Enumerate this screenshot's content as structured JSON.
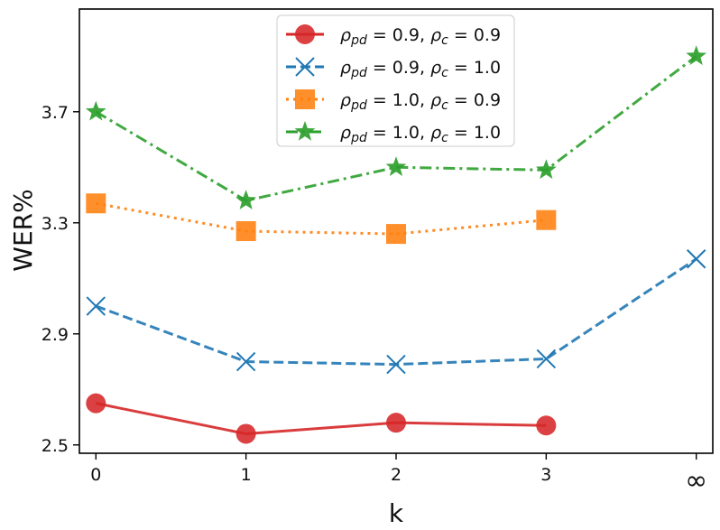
{
  "chart_data": {
    "type": "line",
    "title": "",
    "xlabel": "k",
    "ylabel": "WER%",
    "categories": [
      "0",
      "1",
      "2",
      "3",
      "∞"
    ],
    "x_positions": [
      0,
      1,
      2,
      3,
      4
    ],
    "yticks": [
      "2.5",
      "2.9",
      "3.3",
      "3.7"
    ],
    "ylim": [
      2.47,
      4.07
    ],
    "xlim": [
      -0.11,
      4.11
    ],
    "grid": false,
    "legend_position": "top-center",
    "series": [
      {
        "name": "ρ_pd = 0.9, ρ_c = 0.9",
        "legend_main_a": "ρ",
        "legend_sub_a": "pd",
        "legend_val_a": "= 0.9, ",
        "legend_main_b": "ρ",
        "legend_sub_b": "c",
        "legend_val_b": "= 0.9",
        "values": [
          2.65,
          2.54,
          2.58,
          2.57,
          null
        ],
        "color": "#d62728",
        "line": "solid",
        "marker": "circle"
      },
      {
        "name": "ρ_pd = 0.9, ρ_c = 1.0",
        "legend_main_a": "ρ",
        "legend_sub_a": "pd",
        "legend_val_a": "= 0.9, ",
        "legend_main_b": "ρ",
        "legend_sub_b": "c",
        "legend_val_b": "= 1.0",
        "values": [
          3.0,
          2.8,
          2.79,
          2.81,
          3.17
        ],
        "color": "#1f77b4",
        "line": "dashed",
        "marker": "x"
      },
      {
        "name": "ρ_pd = 1.0, ρ_c = 0.9",
        "legend_main_a": "ρ",
        "legend_sub_a": "pd",
        "legend_val_a": "= 1.0, ",
        "legend_main_b": "ρ",
        "legend_sub_b": "c",
        "legend_val_b": "= 0.9",
        "values": [
          3.37,
          3.27,
          3.26,
          3.31,
          null
        ],
        "color": "#ff7f0e",
        "line": "dotted",
        "marker": "square"
      },
      {
        "name": "ρ_pd = 1.0, ρ_c = 1.0",
        "legend_main_a": "ρ",
        "legend_sub_a": "pd",
        "legend_val_a": "= 1.0, ",
        "legend_main_b": "ρ",
        "legend_sub_b": "c",
        "legend_val_b": "= 1.0",
        "values": [
          3.7,
          3.38,
          3.5,
          3.49,
          3.9
        ],
        "color": "#2ca02c",
        "line": "dashdot",
        "marker": "star"
      }
    ]
  }
}
